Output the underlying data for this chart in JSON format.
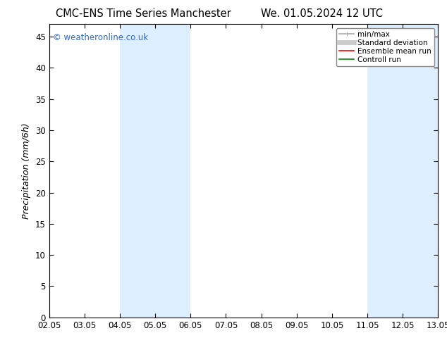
{
  "title_left": "CMC-ENS Time Series Manchester",
  "title_right": "We. 01.05.2024 12 UTC",
  "xlabel": "",
  "ylabel": "Precipitation (mm/6h)",
  "x_tick_labels": [
    "02.05",
    "03.05",
    "04.05",
    "05.05",
    "06.05",
    "07.05",
    "08.05",
    "09.05",
    "10.05",
    "11.05",
    "12.05",
    "13.05"
  ],
  "x_tick_positions": [
    0,
    1,
    2,
    3,
    4,
    5,
    6,
    7,
    8,
    9,
    10,
    11
  ],
  "ylim": [
    0,
    47
  ],
  "yticks": [
    0,
    5,
    10,
    15,
    20,
    25,
    30,
    35,
    40,
    45
  ],
  "shaded_regions": [
    {
      "x_start": 2,
      "x_end": 4,
      "color": "#ddeeff"
    },
    {
      "x_start": 9,
      "x_end": 11,
      "color": "#ddeeff"
    }
  ],
  "watermark": "© weatheronline.co.uk",
  "watermark_color": "#3366cc",
  "legend_entries": [
    {
      "label": "min/max",
      "color": "#aaaaaa",
      "lw": 1.2
    },
    {
      "label": "Standard deviation",
      "color": "#cccccc",
      "lw": 5
    },
    {
      "label": "Ensemble mean run",
      "color": "#ff0000",
      "lw": 1.2
    },
    {
      "label": "Controll run",
      "color": "#008800",
      "lw": 1.2
    }
  ],
  "bg_color": "#ffffff",
  "plot_bg_color": "#ffffff",
  "spine_color": "#000000",
  "tick_color": "#000000",
  "title_fontsize": 10.5,
  "axis_label_fontsize": 9,
  "tick_fontsize": 8.5
}
